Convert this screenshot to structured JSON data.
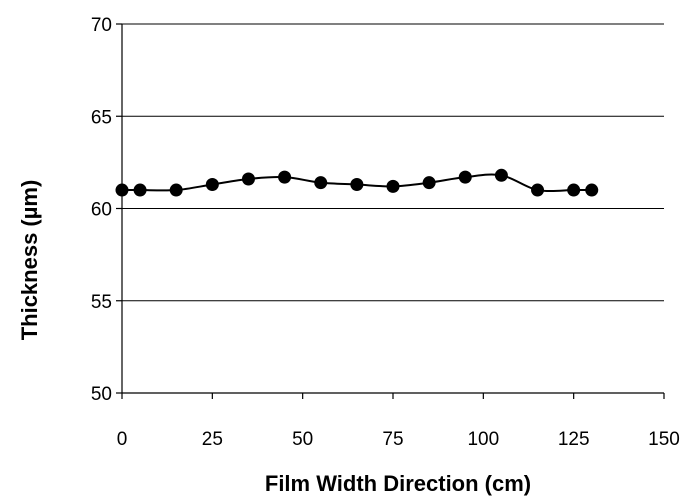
{
  "chart_data": {
    "type": "line",
    "title": "",
    "xlabel": "Film Width Direction (cm)",
    "ylabel": "Thickness (µm)",
    "xlim": [
      0,
      150
    ],
    "ylim": [
      50,
      70
    ],
    "xticks": [
      0,
      25,
      50,
      75,
      100,
      125,
      150
    ],
    "yticks": [
      50,
      55,
      60,
      65,
      70
    ],
    "grid": "horizontal",
    "legend": "none",
    "series": [
      {
        "marker": "circle",
        "line": "smooth",
        "color": "#000000",
        "x": [
          0,
          5,
          15,
          25,
          35,
          45,
          55,
          65,
          75,
          85,
          95,
          105,
          115,
          125,
          130
        ],
        "y": [
          61.0,
          61.0,
          61.0,
          61.3,
          61.6,
          61.7,
          61.4,
          61.3,
          61.2,
          61.4,
          61.7,
          61.8,
          61.0,
          61.0,
          61.0
        ]
      }
    ]
  }
}
